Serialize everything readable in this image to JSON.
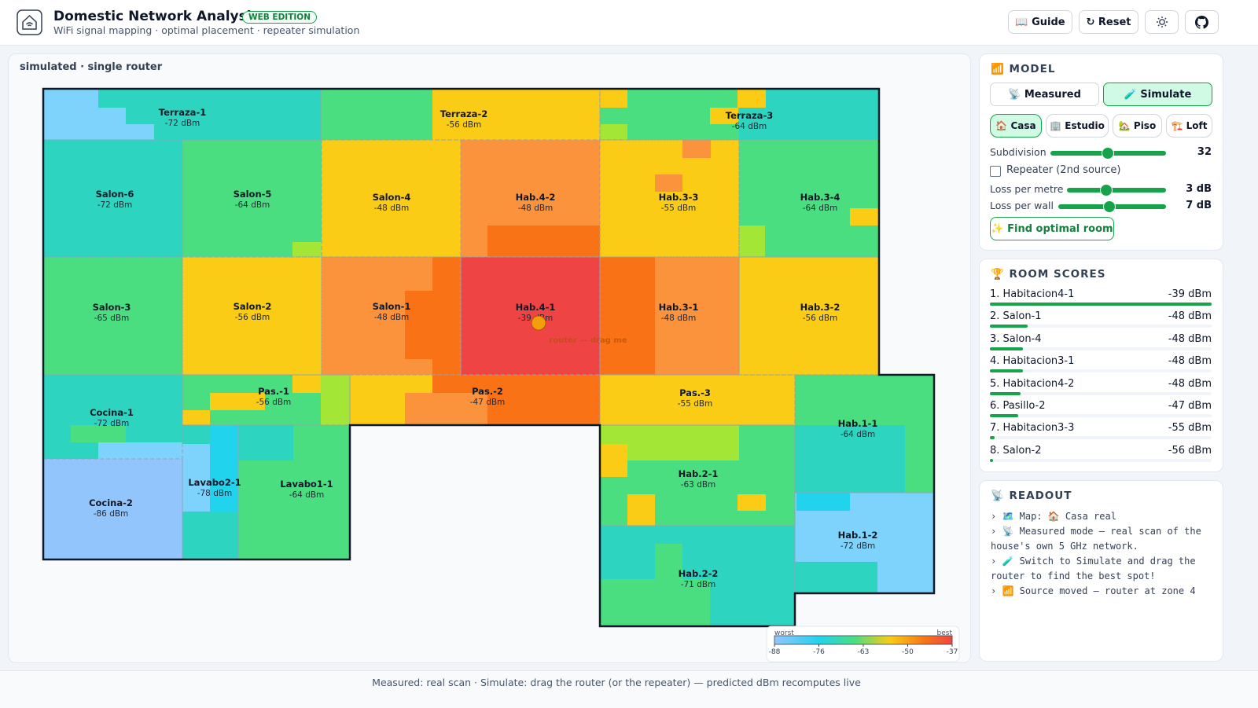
{
  "header": {
    "title": "Domestic Network Analysis",
    "badge": "WEB EDITION",
    "subtitle": "WiFi signal mapping · optimal placement · repeater simulation",
    "buttons": [
      "📖 Guide",
      "↻ Reset"
    ]
  },
  "map": {
    "mode_label": "simulated · single router",
    "rooms": [
      {
        "name": "Terraza-1",
        "signal": "-72 dBm"
      },
      {
        "name": "Terraza-2",
        "signal": "-56 dBm"
      },
      {
        "name": "Terraza-3",
        "signal": "-64 dBm"
      },
      {
        "name": "Salon-6",
        "signal": "-72 dBm"
      },
      {
        "name": "Salon-5",
        "signal": "-64 dBm"
      },
      {
        "name": "Salon-4",
        "signal": "-48 dBm"
      },
      {
        "name": "Hab.4-2",
        "signal": "-48 dBm"
      },
      {
        "name": "Hab.3-3",
        "signal": "-55 dBm"
      },
      {
        "name": "Hab.3-4",
        "signal": "-64 dBm"
      },
      {
        "name": "Salon-3",
        "signal": "-65 dBm"
      },
      {
        "name": "Salon-2",
        "signal": "-56 dBm"
      },
      {
        "name": "Salon-1",
        "signal": "-48 dBm"
      },
      {
        "name": "Hab.4-1",
        "signal": "-39 dBm"
      },
      {
        "name": "Hab.3-1",
        "signal": "-48 dBm"
      },
      {
        "name": "Hab.3-2",
        "signal": "-56 dBm"
      },
      {
        "name": "Cocina-1",
        "signal": "-72 dBm"
      },
      {
        "name": "Pas.-1",
        "signal": "-56 dBm"
      },
      {
        "name": "Pas.-2",
        "signal": "-47 dBm"
      },
      {
        "name": "Pas.-3",
        "signal": "-55 dBm"
      },
      {
        "name": "Hab.1-1",
        "signal": "-64 dBm"
      },
      {
        "name": "Cocina-2",
        "signal": "-86 dBm"
      },
      {
        "name": "Lavabo2-1",
        "signal": "-78 dBm"
      },
      {
        "name": "Lavabo1-1",
        "signal": "-64 dBm"
      },
      {
        "name": "Hab.2-1",
        "signal": "-63 dBm"
      },
      {
        "name": "Hab.2-2",
        "signal": "-71 dBm"
      },
      {
        "name": "Hab.1-2",
        "signal": "-72 dBm"
      }
    ],
    "router_label": "router — drag me",
    "legend": {
      "worst": "worst",
      "best": "best",
      "ticks": [
        "-88",
        "-76",
        "-63",
        "-50",
        "-37"
      ]
    }
  },
  "model": {
    "title": "📶 MODEL",
    "modes": [
      "📡 Measured",
      "🧪 Simulate"
    ],
    "layouts": [
      "🏠 Casa",
      "🏢 Estudio",
      "🏡 Piso",
      "🏗️ Loft"
    ],
    "subdivision": {
      "label": "Subdivision",
      "value": "32"
    },
    "repeater": "Repeater (2nd source)",
    "loss_metre": {
      "label": "Loss per metre",
      "value": "3 dB"
    },
    "loss_wall": {
      "label": "Loss per wall",
      "value": "7 dB"
    },
    "find_button": "✨ Find optimal room"
  },
  "scores": {
    "title": "🏆 ROOM SCORES",
    "items": [
      {
        "name": "1. Habitacion4-1",
        "value": "-39 dBm"
      },
      {
        "name": "2. Salon-1",
        "value": "-48 dBm"
      },
      {
        "name": "3. Salon-4",
        "value": "-48 dBm"
      },
      {
        "name": "4. Habitacion3-1",
        "value": "-48 dBm"
      },
      {
        "name": "5. Habitacion4-2",
        "value": "-48 dBm"
      },
      {
        "name": "6. Pasillo-2",
        "value": "-47 dBm"
      },
      {
        "name": "7. Habitacion3-3",
        "value": "-55 dBm"
      },
      {
        "name": "8. Salon-2",
        "value": "-56 dBm"
      }
    ]
  },
  "readout": {
    "title": "📡 READOUT",
    "lines": [
      "› 🗺️ Map: 🏠 Casa real",
      "› 📡 Measured mode — real scan of the house's own 5 GHz network.",
      "› 🧪 Switch to Simulate and drag the router to find the best spot!",
      "› 📶 Source moved — router at zone 4"
    ]
  },
  "footer": "Measured: real scan · Simulate: drag the router (or the repeater) — predicted dBm recomputes live"
}
